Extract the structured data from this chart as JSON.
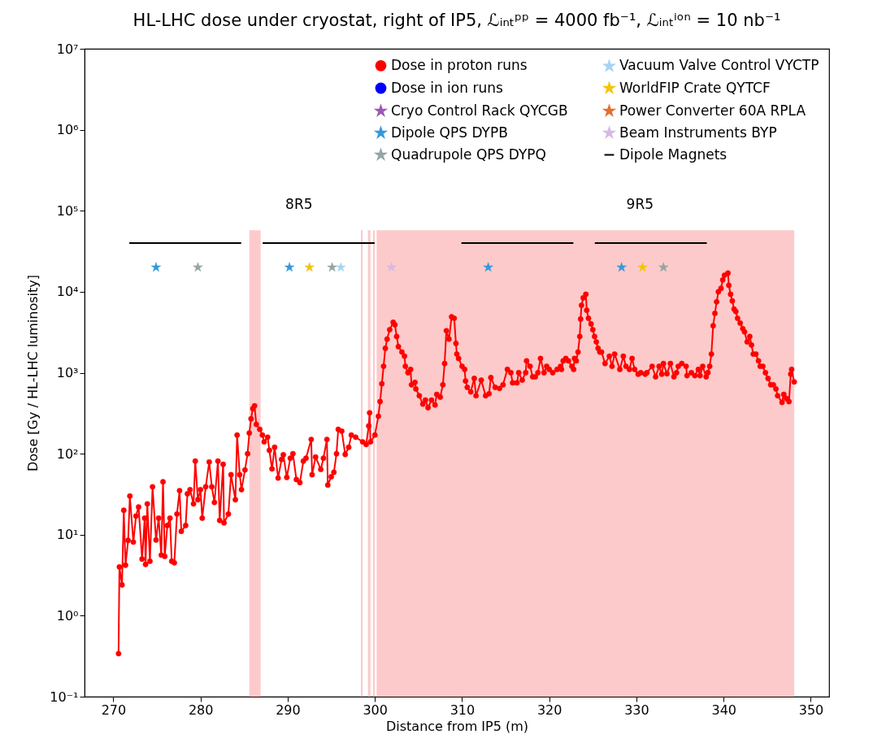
{
  "chart_data": {
    "type": "line",
    "title": "HL-LHC dose under cryostat, right of IP5, ℒᵢₙₜᵖᵖ = 4000 fb⁻¹, ℒᵢₙₜⁱᵒⁿ = 10 nb⁻¹",
    "xlabel": "Distance from IP5 (m)",
    "ylabel": "Dose [Gy / HL-LHC luminosity]",
    "log": "y",
    "legend": "top right",
    "xlim": [
      266.7,
      352.1
    ],
    "xticks": [
      270,
      280,
      290,
      300,
      310,
      320,
      330,
      340,
      350
    ],
    "ylim": [
      0.1,
      10000000
    ],
    "yticks": [
      {
        "value": 0.1,
        "label": "10⁻¹"
      },
      {
        "value": 1,
        "label": "10⁰"
      },
      {
        "value": 10,
        "label": "10¹"
      },
      {
        "value": 100,
        "label": "10²"
      },
      {
        "value": 1000,
        "label": "10³"
      },
      {
        "value": 10000,
        "label": "10⁴"
      },
      {
        "value": 100000,
        "label": "10⁵"
      },
      {
        "value": 1000000,
        "label": "10⁶"
      },
      {
        "value": 10000000,
        "label": "10⁷"
      }
    ],
    "bands": [
      {
        "axis": "x",
        "from": 285.6,
        "to": 286.9,
        "color": "#fccaca"
      },
      {
        "axis": "x",
        "from": 298.4,
        "to": 298.6,
        "color": "#fccaca"
      },
      {
        "axis": "x",
        "from": 299.2,
        "to": 299.5,
        "color": "#fccaca"
      },
      {
        "axis": "x",
        "from": 299.8,
        "to": 300.0,
        "color": "#fccaca"
      },
      {
        "axis": "x",
        "from": 300.2,
        "to": 348.1,
        "color": "#fccaca"
      }
    ],
    "annotations": [
      "8R5",
      "9R5"
    ],
    "series": [
      {
        "name": "Dose in proton runs",
        "type": "line",
        "marker": "circle",
        "color": "#ff0000",
        "x": [
          270.6,
          270.7,
          271.0,
          271.2,
          271.4,
          271.7,
          271.9,
          272.3,
          272.6,
          272.9,
          273.3,
          273.6,
          273.7,
          273.9,
          274.2,
          274.5,
          274.9,
          275.2,
          275.5,
          275.7,
          275.9,
          276.2,
          276.5,
          276.7,
          277.0,
          277.3,
          277.6,
          277.8,
          278.3,
          278.5,
          278.8,
          279.2,
          279.4,
          279.7,
          280.0,
          280.2,
          280.6,
          281.0,
          281.3,
          281.6,
          282.0,
          282.2,
          282.6,
          282.7,
          283.2,
          283.5,
          284.0,
          284.2,
          284.5,
          284.7,
          285.1,
          285.4,
          285.6,
          285.8,
          286.0,
          286.2,
          286.4,
          286.8,
          287.1,
          287.3,
          287.7,
          287.9,
          288.2,
          288.5,
          288.9,
          289.3,
          289.5,
          289.9,
          290.3,
          290.6,
          291.0,
          291.4,
          291.8,
          292.1,
          292.7,
          292.8,
          293.2,
          293.8,
          294.1,
          294.5,
          294.6,
          295.0,
          295.3,
          295.6,
          295.8,
          296.2,
          296.6,
          297.0,
          297.3,
          297.8,
          298.6,
          299.0,
          299.3,
          299.4,
          299.5,
          300.0,
          300.4,
          300.6,
          300.8,
          301.0,
          301.2,
          301.4,
          301.7,
          302.1,
          302.3,
          302.5,
          302.7,
          303.1,
          303.4,
          303.5,
          303.8,
          304.1,
          304.2,
          304.6,
          304.7,
          305.1,
          305.5,
          305.8,
          306.1,
          306.5,
          306.9,
          307.1,
          307.5,
          307.8,
          308.0,
          308.2,
          308.5,
          308.8,
          309.1,
          309.3,
          309.4,
          309.6,
          310.0,
          310.3,
          310.4,
          310.6,
          311.0,
          311.4,
          311.6,
          312.2,
          312.7,
          313.1,
          313.3,
          313.8,
          314.3,
          314.7,
          315.2,
          315.6,
          315.8,
          316.3,
          316.5,
          316.9,
          317.3,
          317.4,
          317.8,
          318.1,
          318.4,
          318.7,
          319.0,
          319.4,
          319.7,
          320.0,
          320.4,
          320.9,
          321.3,
          321.4,
          321.6,
          321.9,
          322.2,
          322.6,
          322.8,
          322.9,
          323.1,
          323.3,
          323.5,
          323.6,
          323.7,
          323.9,
          324.2,
          324.3,
          324.5,
          324.8,
          325.0,
          325.2,
          325.4,
          325.6,
          325.8,
          326.0,
          326.4,
          326.9,
          327.2,
          327.5,
          328.1,
          328.5,
          328.8,
          329.2,
          329.5,
          329.8,
          330.2,
          330.5,
          331.0,
          331.2,
          331.8,
          332.2,
          332.6,
          332.9,
          333.1,
          333.5,
          333.9,
          334.3,
          334.6,
          334.8,
          335.2,
          335.7,
          335.8,
          336.3,
          336.7,
          337.1,
          337.3,
          337.6,
          338.0,
          338.2,
          338.4,
          338.6,
          338.8,
          339.0,
          339.2,
          339.4,
          339.7,
          339.9,
          340.1,
          340.5,
          340.6,
          340.8,
          341.0,
          341.2,
          341.4,
          341.6,
          341.9,
          342.2,
          342.4,
          342.7,
          343.0,
          343.2,
          343.4,
          343.7,
          344.0,
          344.2,
          344.5,
          344.8,
          345.1,
          345.4,
          345.7,
          346.0,
          346.2,
          346.7,
          346.9,
          347.2,
          347.5,
          347.7,
          347.8,
          348.1
        ],
        "values": [
          0.34,
          4.0,
          2.4,
          20,
          4.2,
          8.5,
          30,
          8.1,
          17,
          22,
          5.0,
          16,
          4.3,
          24,
          4.7,
          39,
          8.6,
          16,
          5.6,
          45,
          5.4,
          13,
          16,
          4.7,
          4.5,
          18,
          35,
          11,
          13,
          32,
          36,
          24,
          81,
          27,
          36,
          16,
          39,
          79,
          39,
          25,
          81,
          15,
          74,
          14,
          18,
          55,
          27,
          170,
          55,
          36,
          63,
          100,
          180,
          270,
          360,
          390,
          230,
          200,
          170,
          140,
          160,
          110,
          65,
          120,
          50,
          85,
          97,
          51,
          88,
          100,
          48,
          44,
          81,
          88,
          150,
          55,
          91,
          64,
          88,
          150,
          41,
          52,
          59,
          100,
          200,
          190,
          98,
          120,
          170,
          160,
          140,
          130,
          220,
          320,
          140,
          170,
          290,
          440,
          730,
          1200,
          2000,
          2600,
          3400,
          4200,
          3900,
          2800,
          2100,
          1800,
          1600,
          1200,
          1000,
          1100,
          710,
          760,
          630,
          520,
          410,
          460,
          370,
          460,
          400,
          540,
          500,
          710,
          1300,
          3300,
          2600,
          4900,
          4700,
          2300,
          1700,
          1500,
          1200,
          1100,
          790,
          660,
          580,
          850,
          520,
          810,
          520,
          550,
          870,
          660,
          640,
          710,
          1100,
          1000,
          750,
          750,
          1000,
          810,
          1000,
          1400,
          1200,
          890,
          890,
          1000,
          1500,
          1000,
          1200,
          1100,
          1000,
          1100,
          1200,
          1100,
          1400,
          1500,
          1400,
          1200,
          1100,
          1500,
          1400,
          1800,
          2800,
          4600,
          6800,
          8400,
          9300,
          5900,
          4700,
          4000,
          3400,
          2800,
          2400,
          2000,
          1800,
          1800,
          1300,
          1600,
          1200,
          1700,
          1100,
          1600,
          1200,
          1100,
          1500,
          1100,
          960,
          1000,
          960,
          1000,
          1200,
          890,
          1200,
          960,
          1300,
          970,
          1300,
          890,
          1000,
          1200,
          1300,
          1200,
          920,
          1000,
          920,
          1100,
          920,
          1200,
          890,
          1000,
          1200,
          1700,
          3800,
          5400,
          7500,
          10000,
          11000,
          14000,
          16000,
          17000,
          12000,
          9300,
          7700,
          6100,
          5700,
          4700,
          4100,
          3500,
          3200,
          2400,
          2800,
          2200,
          1700,
          1700,
          1400,
          1200,
          1200,
          1000,
          850,
          710,
          710,
          630,
          520,
          430,
          540,
          480,
          440,
          960,
          1100,
          770
        ]
      },
      {
        "name": "Dose in ion runs",
        "type": "line",
        "marker": "circle",
        "color": "#0000ff"
      },
      {
        "name": "Cryo Control Rack QYCGB",
        "type": "scatter",
        "marker": "star",
        "color": "#9b59b6"
      },
      {
        "name": "Dipole QPS DYPB",
        "type": "scatter",
        "marker": "star",
        "color": "#3498db",
        "x": [
          274.9,
          290.2,
          313.0,
          328.3
        ],
        "values": [
          20000,
          20000,
          20000,
          20000
        ]
      },
      {
        "name": "Quadrupole QPS DYPQ",
        "type": "scatter",
        "marker": "star",
        "color": "#95a5a6",
        "x": [
          279.7,
          295.1,
          333.1
        ],
        "values": [
          20000,
          20000,
          20000
        ]
      },
      {
        "name": "Vacuum Valve Control VYCTP",
        "type": "scatter",
        "marker": "star",
        "color": "#a6d4f2",
        "x": [
          296.1
        ],
        "values": [
          20000
        ]
      },
      {
        "name": "WorldFIP Crate QYTCF",
        "type": "scatter",
        "marker": "star",
        "color": "#f1c40f",
        "x": [
          292.5,
          330.7
        ],
        "values": [
          20000,
          20000
        ]
      },
      {
        "name": "Power Converter 60A RPLA",
        "type": "scatter",
        "marker": "star",
        "color": "#e2702e"
      },
      {
        "name": "Beam Instruments BYP",
        "type": "scatter",
        "marker": "star",
        "color": "#d7b8e6",
        "x": [
          301.9
        ],
        "values": [
          20000
        ]
      },
      {
        "name": "Dipole Magnets",
        "type": "line",
        "marker": "none",
        "color": "#000000",
        "x": [
          271.9,
          284.6,
          286.0,
          287.2,
          299.9,
          305.0,
          310.0,
          322.7,
          324.0,
          325.3,
          338.0
        ],
        "values": [
          40000,
          40000,
          null,
          40000,
          40000,
          null,
          40000,
          40000,
          null,
          40000,
          40000
        ]
      }
    ]
  }
}
